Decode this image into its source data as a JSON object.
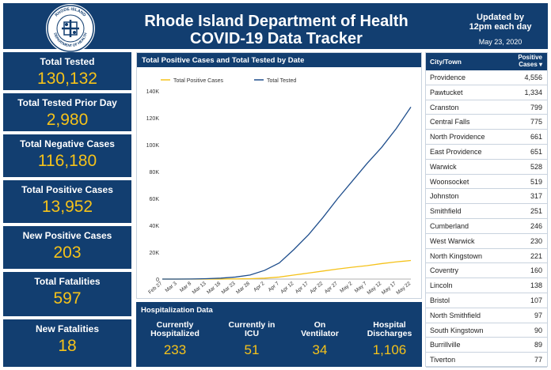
{
  "header": {
    "title_line1": "Rhode Island Department of Health",
    "title_line2": "COVID-19 Data Tracker",
    "updated_line1": "Updated by",
    "updated_line2": "12pm each day",
    "date": "May 23, 2020",
    "logo_icon": "rhode-island-health-seal-icon",
    "logo_text": "RHODE ISLAND DEPARTMENT OF HEALTH"
  },
  "stats": [
    {
      "label": "Total Tested",
      "value": "130,132"
    },
    {
      "label": "Total Tested Prior Day",
      "value": "2,980"
    },
    {
      "label": "Total Negative Cases",
      "value": "116,180"
    },
    {
      "label": "Total Positive Cases",
      "value": "13,952"
    },
    {
      "label": "New Positive Cases",
      "value": "203"
    },
    {
      "label": "Total Fatalities",
      "value": "597"
    },
    {
      "label": "New Fatalities",
      "value": "18"
    }
  ],
  "chart_title": "Total Positive Cases and Total Tested by Date",
  "chart_data": {
    "type": "line",
    "x": [
      "Feb 27",
      "Mar 3",
      "Mar 8",
      "Mar 13",
      "Mar 18",
      "Mar 23",
      "Mar 28",
      "Apr 2",
      "Apr 7",
      "Apr 12",
      "Apr 17",
      "Apr 22",
      "Apr 27",
      "May 2",
      "May 7",
      "May 12",
      "May 17",
      "May 22"
    ],
    "xlabel": "",
    "ylabel": "",
    "ylim": [
      0,
      140000
    ],
    "yticks": [
      "0",
      "20K",
      "40K",
      "60K",
      "80K",
      "100K",
      "120K",
      "140K"
    ],
    "legend_position": "top-left",
    "series": [
      {
        "name": "Total Positive Cases",
        "color": "#f5c21a",
        "values": [
          0,
          2,
          5,
          20,
          50,
          150,
          300,
          700,
          1500,
          3000,
          4500,
          6000,
          7500,
          8800,
          10000,
          11500,
          12800,
          13800
        ]
      },
      {
        "name": "Total Tested",
        "color": "#1f4e8c",
        "values": [
          0,
          20,
          80,
          300,
          700,
          1500,
          3000,
          6500,
          12000,
          22000,
          33000,
          46000,
          60000,
          73000,
          86000,
          98000,
          112000,
          128000
        ]
      }
    ]
  },
  "hospitalization": {
    "title": "Hospitalization Data",
    "items": [
      {
        "label1": "Currently",
        "label2": "Hospitalized",
        "value": "233"
      },
      {
        "label1": "Currently in",
        "label2": "ICU",
        "value": "51"
      },
      {
        "label1": "On",
        "label2": "Ventilator",
        "value": "34"
      },
      {
        "label1": "Hospital",
        "label2": "Discharges",
        "value": "1,106"
      }
    ]
  },
  "cities": {
    "header_city": "City/Town",
    "header_cases_line1": "Positive",
    "header_cases_line2": "Cases ▾",
    "rows": [
      {
        "name": "Providence",
        "value": "4,556"
      },
      {
        "name": "Pawtucket",
        "value": "1,334"
      },
      {
        "name": "Cranston",
        "value": "799"
      },
      {
        "name": "Central Falls",
        "value": "775"
      },
      {
        "name": "North Providence",
        "value": "661"
      },
      {
        "name": "East Providence",
        "value": "651"
      },
      {
        "name": "Warwick",
        "value": "528"
      },
      {
        "name": "Woonsocket",
        "value": "519"
      },
      {
        "name": "Johnston",
        "value": "317"
      },
      {
        "name": "Smithfield",
        "value": "251"
      },
      {
        "name": "Cumberland",
        "value": "246"
      },
      {
        "name": "West Warwick",
        "value": "230"
      },
      {
        "name": "North Kingstown",
        "value": "221"
      },
      {
        "name": "Coventry",
        "value": "160"
      },
      {
        "name": "Lincoln",
        "value": "138"
      },
      {
        "name": "Bristol",
        "value": "107"
      },
      {
        "name": "North Smithfield",
        "value": "97"
      },
      {
        "name": "South Kingstown",
        "value": "90"
      },
      {
        "name": "Burrillville",
        "value": "89"
      },
      {
        "name": "Tiverton",
        "value": "77"
      }
    ]
  }
}
